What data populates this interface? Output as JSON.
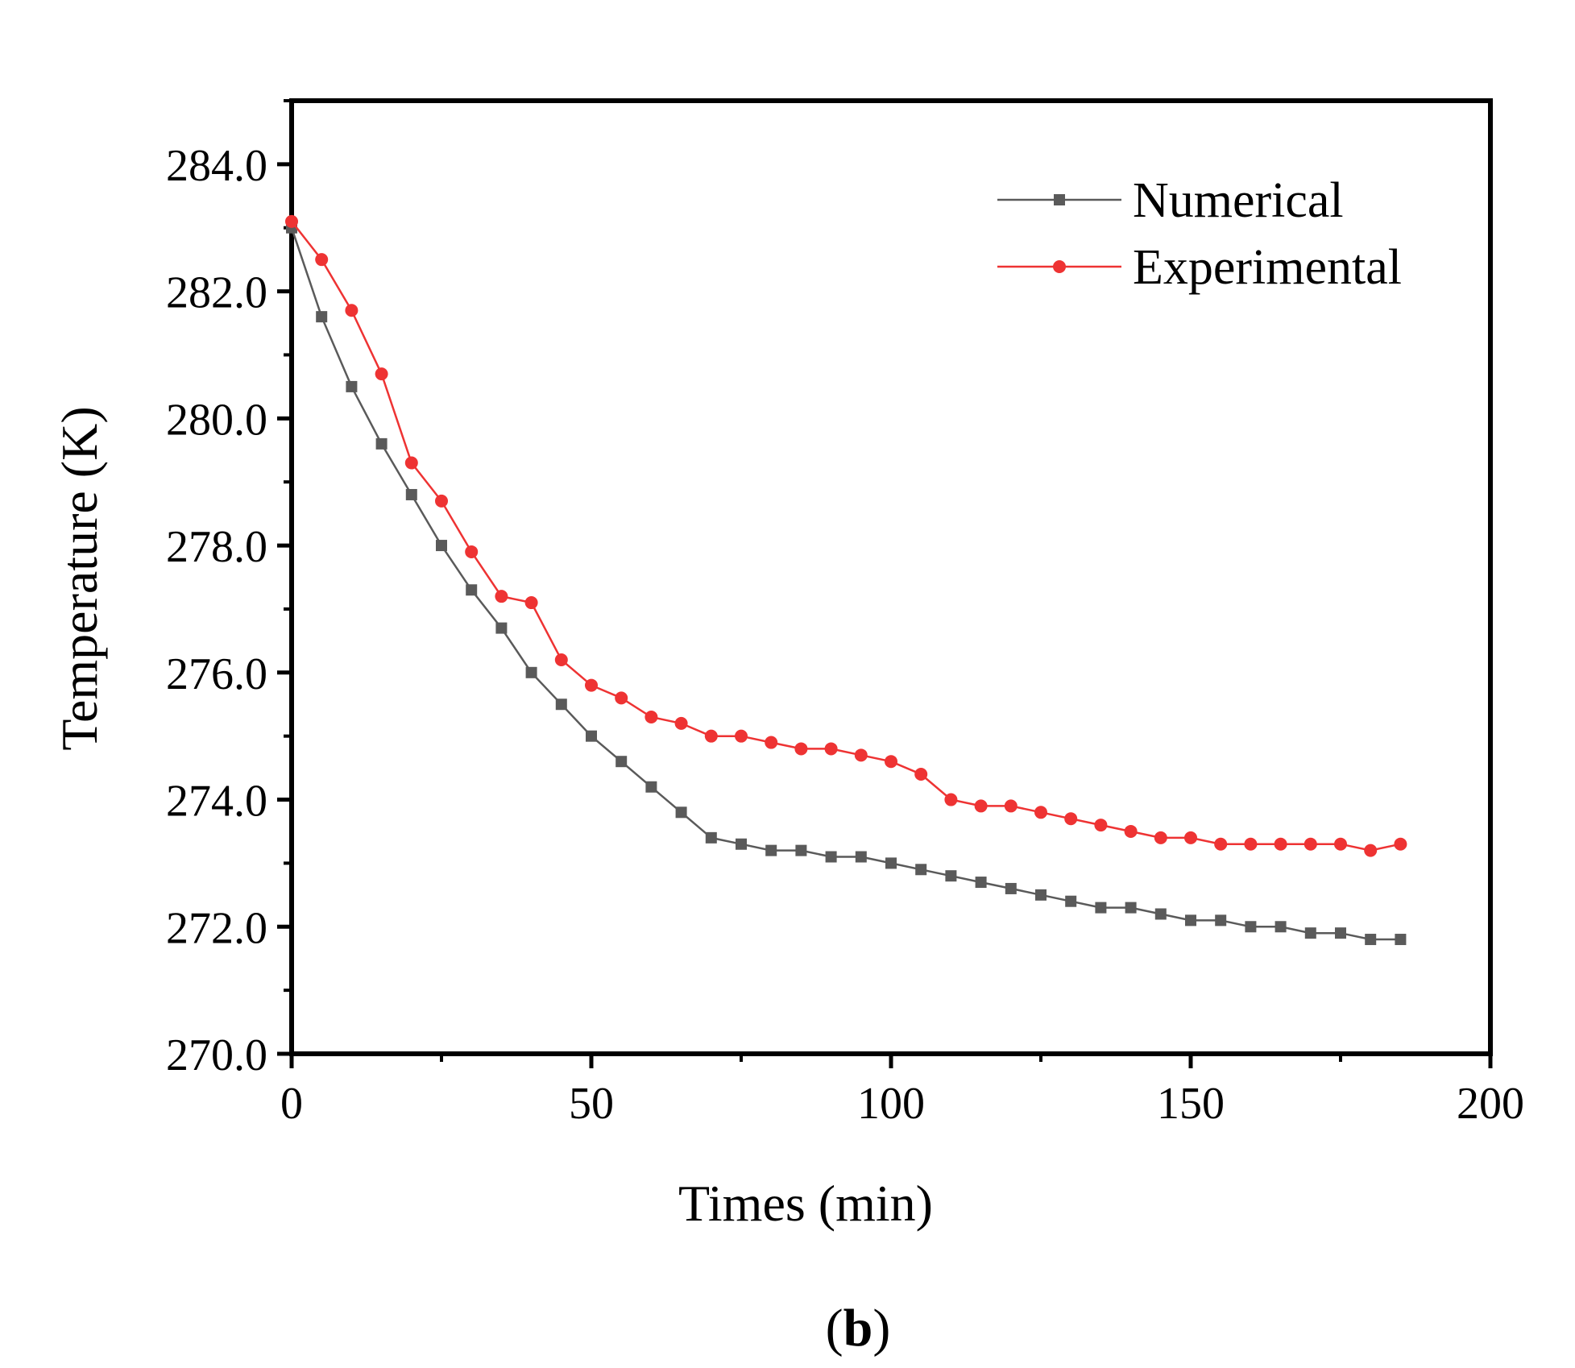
{
  "chart_data": {
    "type": "line",
    "title": "",
    "panel_label": {
      "open": "(",
      "letter": "b",
      "close": ")"
    },
    "xlabel": "Times (min)",
    "ylabel": "Temperature (K)",
    "xlim": [
      0,
      200
    ],
    "ylim": [
      270,
      285
    ],
    "x_ticks": [
      0,
      50,
      100,
      150,
      200
    ],
    "x_tick_labels": [
      "0",
      "50",
      "100",
      "150",
      "200"
    ],
    "y_ticks": [
      270,
      272,
      274,
      276,
      278,
      280,
      282,
      284
    ],
    "y_tick_labels": [
      "270.0",
      "272.0",
      "274.0",
      "276.0",
      "278.0",
      "280.0",
      "282.0",
      "284.0"
    ],
    "grid": false,
    "legend_position": "top-right",
    "x": [
      0,
      5,
      10,
      15,
      20,
      25,
      30,
      35,
      40,
      45,
      50,
      55,
      60,
      65,
      70,
      75,
      80,
      85,
      90,
      95,
      100,
      105,
      110,
      115,
      120,
      125,
      130,
      135,
      140,
      145,
      150,
      155,
      160,
      165,
      170,
      175,
      180,
      185
    ],
    "series": [
      {
        "name": "Numerical",
        "color": "#5a5a5a",
        "marker": "square",
        "values": [
          283.0,
          281.6,
          280.5,
          279.6,
          278.8,
          278.0,
          277.3,
          276.7,
          276.0,
          275.5,
          275.0,
          274.6,
          274.2,
          273.8,
          273.4,
          273.3,
          273.2,
          273.2,
          273.1,
          273.1,
          273.0,
          272.9,
          272.8,
          272.7,
          272.6,
          272.5,
          272.4,
          272.3,
          272.3,
          272.2,
          272.1,
          272.1,
          272.0,
          272.0,
          271.9,
          271.9,
          271.8,
          271.8
        ]
      },
      {
        "name": "Experimental",
        "color": "#ee3333",
        "marker": "circle",
        "values": [
          283.1,
          282.5,
          281.7,
          280.7,
          279.3,
          278.7,
          277.9,
          277.2,
          277.1,
          276.2,
          275.8,
          275.6,
          275.3,
          275.2,
          275.0,
          275.0,
          274.9,
          274.8,
          274.8,
          274.7,
          274.6,
          274.4,
          274.0,
          273.9,
          273.9,
          273.8,
          273.7,
          273.6,
          273.5,
          273.4,
          273.4,
          273.3,
          273.3,
          273.3,
          273.3,
          273.3,
          273.2,
          273.3
        ]
      }
    ]
  }
}
